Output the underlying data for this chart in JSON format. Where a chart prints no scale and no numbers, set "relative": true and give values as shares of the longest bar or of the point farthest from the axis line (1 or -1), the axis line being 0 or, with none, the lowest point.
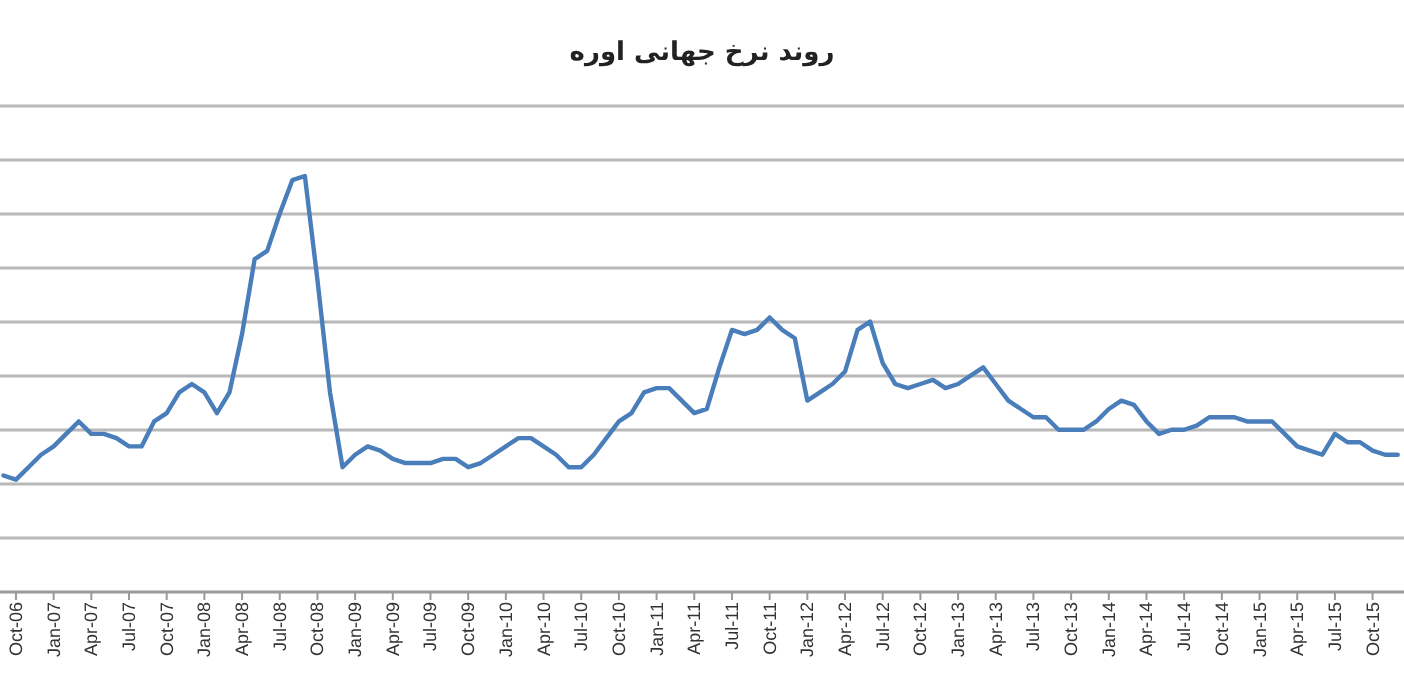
{
  "chart_data": {
    "type": "line",
    "title": "روند نرخ جهانی اوره",
    "relative": true,
    "grid": "y",
    "color": "#4a7ebb",
    "categories": [
      null,
      "Oct-06",
      null,
      null,
      "Jan-07",
      null,
      null,
      "Apr-07",
      null,
      null,
      "Jul-07",
      null,
      null,
      "Oct-07",
      null,
      null,
      "Jan-08",
      null,
      null,
      "Apr-08",
      null,
      null,
      "Jul-08",
      null,
      null,
      "Oct-08",
      null,
      null,
      "Jan-09",
      null,
      null,
      "Apr-09",
      null,
      null,
      "Jul-09",
      null,
      null,
      "Oct-09",
      null,
      null,
      "Jan-10",
      null,
      null,
      "Apr-10",
      null,
      null,
      "Jul-10",
      null,
      null,
      "Oct-10",
      null,
      null,
      "Jan-11",
      null,
      null,
      "Apr-11",
      null,
      null,
      "Jul-11",
      null,
      null,
      "Oct-11",
      null,
      null,
      "Jan-12",
      null,
      null,
      "Apr-12",
      null,
      null,
      "Jul-12",
      null,
      null,
      "Oct-12",
      null,
      null,
      "Jan-13",
      null,
      null,
      "Apr-13",
      null,
      null,
      "Jul-13",
      null,
      null,
      "Oct-13",
      null,
      null,
      "Jan-14",
      null,
      null,
      "Apr-14",
      null,
      null,
      "Jul-14",
      null,
      null,
      "Oct-14",
      null,
      null,
      "Jan-15",
      null,
      null,
      "Apr-15",
      null,
      null,
      "Jul-15",
      null,
      null,
      "Oct-15",
      null,
      null
    ],
    "values": [
      0.28,
      0.27,
      0.3,
      0.33,
      0.35,
      0.38,
      0.41,
      0.38,
      0.38,
      0.37,
      0.35,
      0.35,
      0.41,
      0.43,
      0.48,
      0.5,
      0.48,
      0.43,
      0.48,
      0.62,
      0.8,
      0.82,
      0.91,
      0.99,
      1,
      0.75,
      0.48,
      0.3,
      0.33,
      0.35,
      0.34,
      0.32,
      0.31,
      0.31,
      0.31,
      0.32,
      0.32,
      0.3,
      0.31,
      0.33,
      0.35,
      0.37,
      0.37,
      0.35,
      0.33,
      0.3,
      0.3,
      0.33,
      0.37,
      0.41,
      0.43,
      0.48,
      0.49,
      0.49,
      0.46,
      0.43,
      0.44,
      0.54,
      0.63,
      0.62,
      0.63,
      0.66,
      0.63,
      0.61,
      0.46,
      0.48,
      0.5,
      0.53,
      0.63,
      0.65,
      0.55,
      0.5,
      0.49,
      0.5,
      0.51,
      0.49,
      0.5,
      0.52,
      0.54,
      0.5,
      0.46,
      0.44,
      0.42,
      0.42,
      0.39,
      0.39,
      0.39,
      0.41,
      0.44,
      0.46,
      0.45,
      0.41,
      0.38,
      0.39,
      0.39,
      0.4,
      0.42,
      0.42,
      0.42,
      0.41,
      0.41,
      0.41,
      0.38,
      0.35,
      0.34,
      0.33,
      0.38,
      0.36,
      0.36,
      0.34,
      0.33,
      0.33
    ]
  }
}
